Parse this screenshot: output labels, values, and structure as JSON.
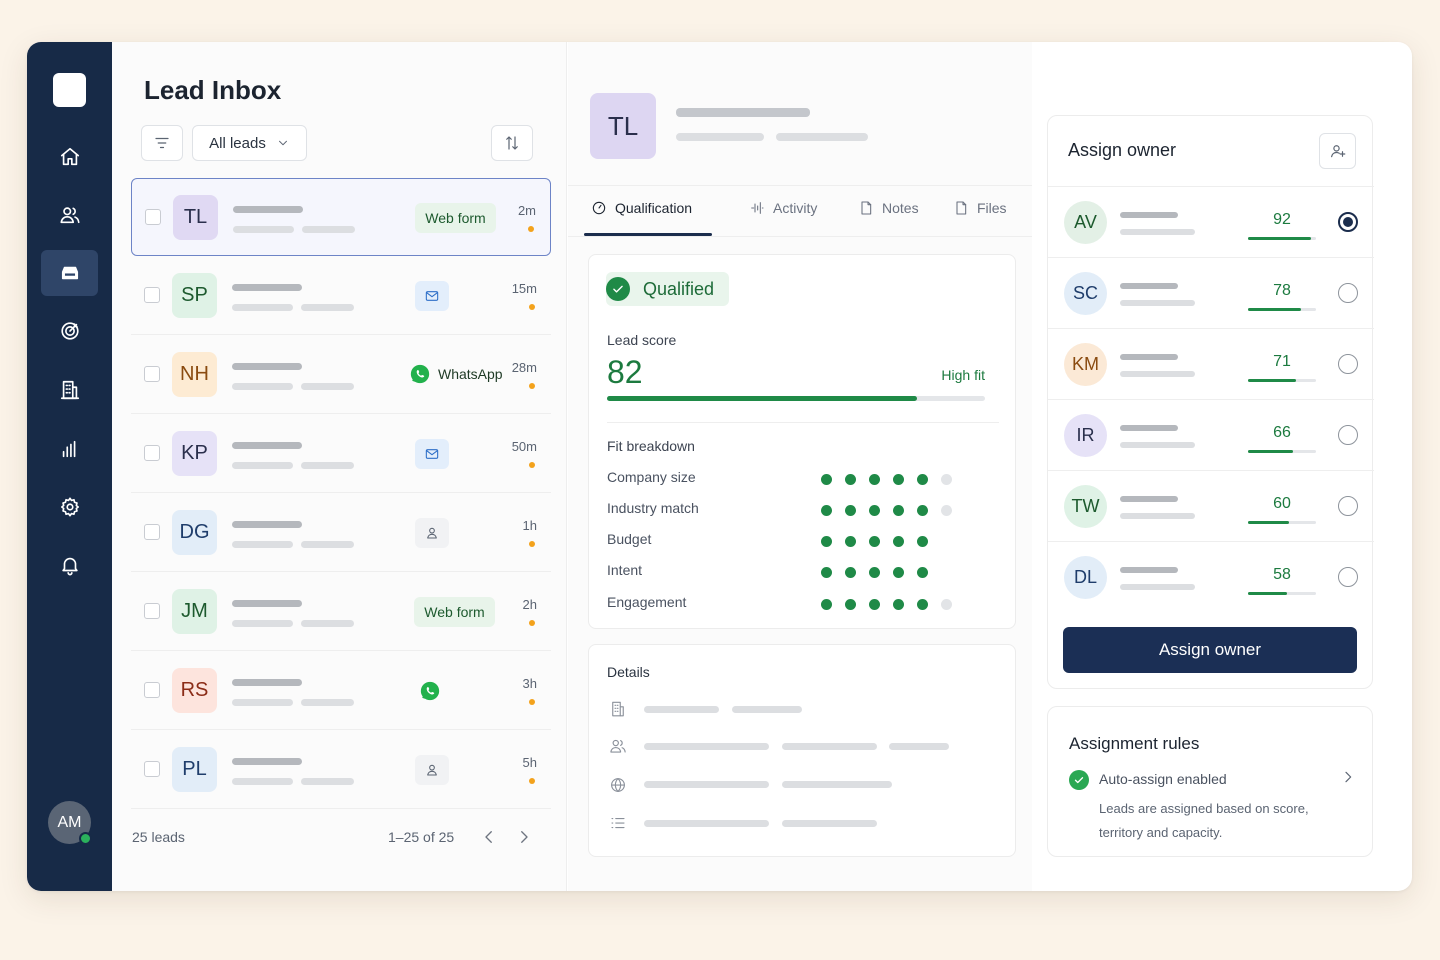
{
  "app": {
    "title": "Lead Inbox",
    "filter_label": "All leads",
    "user_initials": "AM"
  },
  "sidebar": {
    "items": [
      {
        "icon": "home-icon"
      },
      {
        "icon": "users-icon"
      },
      {
        "icon": "inbox-icon",
        "active": true
      },
      {
        "icon": "target-icon"
      },
      {
        "icon": "building-icon"
      },
      {
        "icon": "bar-chart-icon"
      },
      {
        "icon": "gear-icon"
      },
      {
        "icon": "bell-icon"
      }
    ]
  },
  "leads": [
    {
      "initials": "TL",
      "source": "Web form",
      "time": "2m",
      "selected": true,
      "color": "#e0d9f3"
    },
    {
      "initials": "SP",
      "source": "email",
      "time": "15m",
      "color": "#dff2e6"
    },
    {
      "initials": "NH",
      "source": "WhatsApp",
      "time": "28m",
      "color": "#fdebd3"
    },
    {
      "initials": "KP",
      "source": "email",
      "time": "50m",
      "color": "#e6e2f7"
    },
    {
      "initials": "DG",
      "source": "contact",
      "time": "1h",
      "color": "#e2edf8"
    },
    {
      "initials": "JM",
      "source": "Web form",
      "time": "2h",
      "color": "#dff2e6"
    },
    {
      "initials": "RS",
      "source": "whatsapp-icon-only",
      "time": "3h",
      "color": "#fde4dd"
    },
    {
      "initials": "PL",
      "source": "contact",
      "time": "5h",
      "color": "#e2edf8"
    }
  ],
  "list_footer": {
    "count": "25 leads",
    "range": "1–25 of 25"
  },
  "detail": {
    "initials": "TL",
    "tabs": [
      {
        "label": "Qualification",
        "icon": "gauge-icon",
        "active": true
      },
      {
        "label": "Activity",
        "icon": "activity-icon"
      },
      {
        "label": "Notes",
        "icon": "document-icon"
      },
      {
        "label": "Files",
        "icon": "file-icon"
      }
    ],
    "status": "Qualified",
    "lead_score_label": "Lead score",
    "lead_score": 82,
    "fit_label": "High fit",
    "fit_breakdown_title": "Fit breakdown",
    "fit_breakdown": [
      {
        "label": "Company size",
        "filled": 5,
        "total": 6
      },
      {
        "label": "Industry match",
        "filled": 5,
        "total": 6
      },
      {
        "label": "Budget",
        "filled": 5,
        "total": 5
      },
      {
        "label": "Intent",
        "filled": 5,
        "total": 5
      },
      {
        "label": "Engagement",
        "filled": 5,
        "total": 6
      }
    ],
    "details_title": "Details"
  },
  "assign": {
    "title": "Assign owner",
    "button_label": "Assign owner",
    "owners": [
      {
        "initials": "AV",
        "score": 92,
        "selected": true,
        "color": "#e3f0e6"
      },
      {
        "initials": "SC",
        "score": 78,
        "color": "#e2edf8"
      },
      {
        "initials": "KM",
        "score": 71,
        "color": "#fbe9d6"
      },
      {
        "initials": "IR",
        "score": 66,
        "color": "#e6e2f7"
      },
      {
        "initials": "TW",
        "score": 60,
        "color": "#dff2e6"
      },
      {
        "initials": "DL",
        "score": 58,
        "color": "#e2edf8"
      }
    ]
  },
  "rules": {
    "title": "Assignment rules",
    "enabled_label": "Auto-assign enabled",
    "description": "Leads are assigned based on score, territory and capacity."
  },
  "colors": {
    "sidebar": "#172a47",
    "primary": "#1b2f55",
    "success": "#1f8a47",
    "accent_dot": "#f3a21c"
  }
}
